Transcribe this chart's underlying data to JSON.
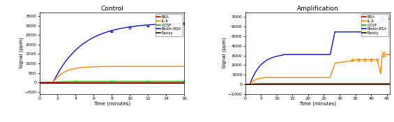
{
  "left": {
    "title": "Control",
    "xlabel": "Time (minutes)",
    "ylabel": "Signal (ppm)",
    "ylim": [
      -600,
      3700
    ],
    "xlim": [
      0,
      16
    ],
    "xticks": [
      0,
      2,
      4,
      6,
      8,
      10,
      12,
      14,
      16
    ],
    "yticks": [
      -500,
      0,
      500,
      1000,
      1500,
      2000,
      2500,
      3000,
      3500
    ]
  },
  "right": {
    "title": "Amplification",
    "xlabel": "Time (minutes)",
    "ylabel": "Signal (ppm)",
    "ylim": [
      -1000,
      7500
    ],
    "xlim": [
      0,
      46
    ],
    "xticks": [
      0,
      5,
      10,
      15,
      20,
      25,
      30,
      35,
      40,
      45
    ],
    "yticks": [
      -1000,
      0,
      1000,
      2000,
      3000,
      4000,
      5000,
      6000,
      7000
    ]
  },
  "legend_labels": [
    "BSA",
    "IL-6",
    "GCSF",
    "Biotin-BSA",
    "Epoxy"
  ],
  "legend_colors": [
    "#cc0000",
    "#ff8800",
    "#22aa00",
    "#1111dd",
    "#111111"
  ],
  "bg_color": "#ffffff",
  "axes_bg": "#ffffff"
}
